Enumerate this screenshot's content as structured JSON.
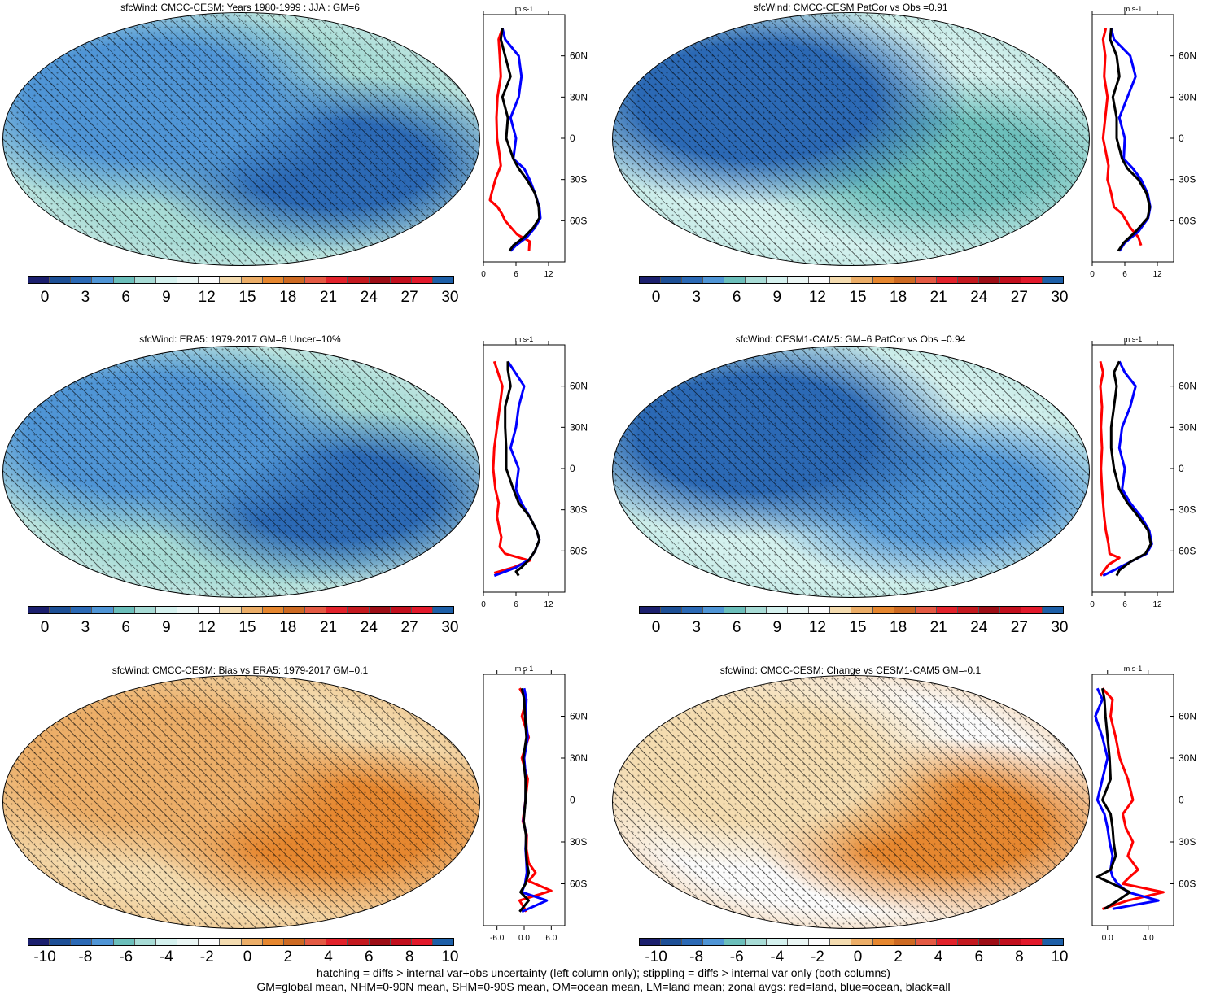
{
  "colors": {
    "abs_palette": [
      "#1b1f6e",
      "#1d4f96",
      "#2b69b5",
      "#4f95d6",
      "#6cbfbb",
      "#a8dcd6",
      "#d4f1ee",
      "#eaf6f4",
      "#fbfbfb",
      "#f4dcb0",
      "#ecae68",
      "#e6872f",
      "#cd6a22",
      "#e45a43",
      "#e2222b",
      "#c4191f",
      "#9d0d16",
      "#c20f1d",
      "#e2192b",
      "#1d5fa8"
    ],
    "diff_palette": [
      "#1b1f6e",
      "#1d4f96",
      "#2b69b5",
      "#4f95d6",
      "#6cbfbb",
      "#a8dcd6",
      "#d4f1ee",
      "#eaf6f4",
      "#fbfbfb",
      "#f4dcb0",
      "#ecae68",
      "#e6872f",
      "#cd6a22",
      "#e45a43",
      "#e2222b",
      "#c4191f",
      "#9d0d16",
      "#c20f1d",
      "#e2192b",
      "#1d5fa8"
    ],
    "land": "red",
    "ocean": "blue",
    "all": "black"
  },
  "chart_data": [
    {
      "type": "heatmap",
      "title": "sfcWind: CMCC-CESM: Years 1980-1999 : JJA : GM=6",
      "colorbar_ticks": [
        "0",
        "3",
        "6",
        "9",
        "12",
        "15",
        "18",
        "21",
        "24",
        "27",
        "30"
      ],
      "zonal": {
        "unit": "m s-1",
        "x_ticks": [
          "0",
          "6",
          "12"
        ],
        "xlim": [
          0,
          15
        ],
        "y_ticks": [
          "60N",
          "30N",
          "0",
          "30S",
          "60S"
        ],
        "series": [
          {
            "name": "red=land",
            "color": "#ff0000",
            "x": [
              3.5,
              2.8,
              3,
              3.2,
              2.6,
              2.4,
              2.5,
              2.9,
              3.2,
              2.2,
              1.5,
              1.2,
              2.6,
              3.4,
              4,
              6.2,
              8.5,
              8.4
            ],
            "lat": [
              80,
              72,
              60,
              45,
              30,
              15,
              0,
              -10,
              -20,
              -30,
              -40,
              -45,
              -50,
              -55,
              -60,
              -70,
              -75,
              -82
            ]
          },
          {
            "name": "blue=ocean",
            "color": "#0000ff",
            "x": [
              3.5,
              4,
              6.5,
              7,
              6.5,
              5,
              6,
              5.5,
              7.5,
              8.5,
              9.5,
              10.3,
              10.5,
              9.5,
              8,
              6,
              5
            ],
            "lat": [
              80,
              72,
              60,
              45,
              30,
              15,
              0,
              -15,
              -22,
              -30,
              -40,
              -50,
              -58,
              -65,
              -72,
              -78,
              -82
            ]
          },
          {
            "name": "black=all",
            "color": "#000000",
            "x": [
              3.5,
              3.2,
              4,
              5,
              3.5,
              4.5,
              4.2,
              5.5,
              6.5,
              8,
              9.5,
              10.2,
              10.3,
              9.2,
              7.5,
              5.5,
              4.8
            ],
            "lat": [
              80,
              72,
              60,
              45,
              30,
              15,
              0,
              -15,
              -22,
              -30,
              -40,
              -50,
              -58,
              -65,
              -72,
              -78,
              -82
            ]
          }
        ]
      }
    },
    {
      "type": "heatmap",
      "title": "sfcWind: CMCC-CESM PatCor vs Obs =0.91",
      "colorbar_ticks": [
        "0",
        "3",
        "6",
        "9",
        "12",
        "15",
        "18",
        "21",
        "24",
        "27",
        "30"
      ],
      "zonal": {
        "unit": "m s-1",
        "x_ticks": [
          "0",
          "6",
          "12"
        ],
        "xlim": [
          0,
          15
        ],
        "y_ticks": [
          "60N",
          "30N",
          "0",
          "30S",
          "60S"
        ],
        "series": [
          {
            "name": "red=land",
            "color": "#ff0000",
            "x": [
              2.5,
              2,
              2.4,
              2.2,
              2.8,
              2.4,
              2,
              2.5,
              3,
              2.8,
              3.5,
              4,
              5.5,
              7,
              8.5,
              9
            ],
            "lat": [
              80,
              72,
              60,
              45,
              30,
              15,
              0,
              -10,
              -20,
              -30,
              -40,
              -50,
              -55,
              -65,
              -72,
              -78
            ]
          },
          {
            "name": "blue=ocean",
            "color": "#0000ff",
            "x": [
              3.5,
              4,
              7,
              8,
              6.5,
              5,
              6,
              5.8,
              7.5,
              9,
              10.2,
              10.7,
              10.3,
              8.5,
              6,
              5
            ],
            "lat": [
              80,
              72,
              60,
              45,
              30,
              15,
              0,
              -15,
              -22,
              -30,
              -40,
              -50,
              -58,
              -68,
              -76,
              -82
            ]
          },
          {
            "name": "black=all",
            "color": "#000000",
            "x": [
              3.5,
              3.3,
              4.5,
              5,
              3.8,
              4.5,
              4.5,
              5.5,
              6.5,
              8.5,
              10,
              10.6,
              10.2,
              8,
              5.8,
              4.8
            ],
            "lat": [
              80,
              72,
              60,
              45,
              30,
              15,
              0,
              -15,
              -22,
              -30,
              -40,
              -50,
              -58,
              -68,
              -76,
              -82
            ]
          }
        ]
      }
    },
    {
      "type": "heatmap",
      "title": "sfcWind: ERA5: 1979-2017 GM=6 Uncer=10%",
      "colorbar_ticks": [
        "0",
        "3",
        "6",
        "9",
        "12",
        "15",
        "18",
        "21",
        "24",
        "27",
        "30"
      ],
      "zonal": {
        "unit": "m s-1",
        "x_ticks": [
          "0",
          "6",
          "12"
        ],
        "xlim": [
          0,
          15
        ],
        "y_ticks": [
          "60N",
          "30N",
          "0",
          "30S",
          "60S"
        ],
        "series": [
          {
            "name": "red=land",
            "color": "#ff0000",
            "x": [
              2,
              2.5,
              3.5,
              3,
              2.5,
              2,
              1.8,
              2.2,
              2.8,
              2.5,
              3,
              3.3,
              3,
              4,
              8.5,
              5.5,
              2
            ],
            "lat": [
              78,
              72,
              60,
              45,
              30,
              15,
              0,
              -15,
              -25,
              -35,
              -45,
              -50,
              -57,
              -62,
              -67,
              -72,
              -76
            ]
          },
          {
            "name": "blue=ocean",
            "color": "#0000ff",
            "x": [
              4.5,
              5.5,
              7.5,
              6.5,
              6,
              5,
              6.5,
              6,
              7,
              8.5,
              9.8,
              10.3,
              9.5,
              8.5,
              6,
              4,
              2
            ],
            "lat": [
              78,
              72,
              60,
              45,
              30,
              15,
              0,
              -15,
              -25,
              -35,
              -45,
              -52,
              -60,
              -66,
              -72,
              -75,
              -78
            ]
          },
          {
            "name": "black=all",
            "color": "#000000",
            "x": [
              4.5,
              4.5,
              5,
              4,
              4,
              4.2,
              4.2,
              5.5,
              6.5,
              8.5,
              9.8,
              10.3,
              9.5,
              8.5,
              7,
              6,
              6.5
            ],
            "lat": [
              78,
              72,
              60,
              45,
              30,
              15,
              0,
              -15,
              -25,
              -35,
              -45,
              -52,
              -60,
              -66,
              -72,
              -75,
              -78
            ]
          }
        ]
      }
    },
    {
      "type": "heatmap",
      "title": "sfcWind: CESM1-CAM5: GM=6 PatCor vs Obs =0.94",
      "colorbar_ticks": [
        "0",
        "3",
        "6",
        "9",
        "12",
        "15",
        "18",
        "21",
        "24",
        "27",
        "30"
      ],
      "zonal": {
        "unit": "m s-1",
        "x_ticks": [
          "0",
          "6",
          "12"
        ],
        "xlim": [
          0,
          15
        ],
        "y_ticks": [
          "60N",
          "30N",
          "0",
          "30S",
          "60S"
        ],
        "series": [
          {
            "name": "red=land",
            "color": "#ff0000",
            "x": [
              1.5,
              2,
              1.5,
              1.8,
              1.6,
              1.8,
              1.6,
              1.8,
              2,
              2.2,
              2.5,
              3,
              3.2,
              5,
              3,
              1.5
            ],
            "lat": [
              78,
              70,
              60,
              45,
              30,
              15,
              0,
              -15,
              -25,
              -35,
              -45,
              -55,
              -62,
              -65,
              -70,
              -78
            ]
          },
          {
            "name": "blue=ocean",
            "color": "#0000ff",
            "x": [
              5,
              6,
              8,
              7,
              5.5,
              5,
              6,
              5.5,
              7,
              9,
              10.5,
              11,
              10,
              7,
              4,
              2
            ],
            "lat": [
              78,
              70,
              60,
              45,
              30,
              15,
              0,
              -15,
              -25,
              -35,
              -45,
              -55,
              -62,
              -68,
              -74,
              -78
            ]
          },
          {
            "name": "black=all",
            "color": "#000000",
            "x": [
              5,
              4,
              4.5,
              4,
              3.5,
              3.5,
              4,
              5,
              6.5,
              8.5,
              10.3,
              10.8,
              9.8,
              7,
              5,
              4.5
            ],
            "lat": [
              78,
              70,
              60,
              45,
              30,
              15,
              0,
              -15,
              -25,
              -35,
              -45,
              -55,
              -62,
              -68,
              -74,
              -78
            ]
          }
        ]
      }
    },
    {
      "type": "heatmap",
      "title": "sfcWind: CMCC-CESM: Bias vs ERA5: 1979-2017 GM=0.1",
      "colorbar_ticks": [
        "-10",
        "-8",
        "-6",
        "-4",
        "-2",
        "0",
        "2",
        "4",
        "6",
        "8",
        "10"
      ],
      "zonal": {
        "unit": "m s-1",
        "x_ticks": [
          "-6.0",
          "0.0",
          "6.0"
        ],
        "xlim": [
          -9,
          9
        ],
        "y_ticks": [
          "60N",
          "30N",
          "0",
          "30S",
          "60S"
        ],
        "series": [
          {
            "name": "red=land",
            "color": "#ff0000",
            "x": [
              -1,
              0.5,
              -0.5,
              1,
              -0.5,
              0.8,
              0.3,
              -0.3,
              0.6,
              0.5,
              1,
              2.5,
              1,
              6,
              -1,
              0.5
            ],
            "lat": [
              80,
              72,
              60,
              45,
              30,
              15,
              0,
              -15,
              -25,
              -35,
              -45,
              -52,
              -58,
              -65,
              -72,
              -80
            ]
          },
          {
            "name": "blue=ocean",
            "color": "#0000ff",
            "x": [
              0,
              0.5,
              0.3,
              0.8,
              0,
              0.4,
              0.3,
              -0.2,
              0.5,
              0.3,
              0.5,
              0.6,
              0.2,
              -0.5,
              5,
              -0.5
            ],
            "lat": [
              80,
              72,
              60,
              45,
              30,
              15,
              0,
              -15,
              -25,
              -35,
              -45,
              -52,
              -60,
              -66,
              -72,
              -80
            ]
          },
          {
            "name": "black=all",
            "color": "#000000",
            "x": [
              -0.5,
              0,
              0.2,
              0.5,
              -0.2,
              0.3,
              0.3,
              -0.1,
              0.4,
              0.4,
              0.6,
              1,
              0.3,
              -0.8,
              1,
              -1
            ],
            "lat": [
              80,
              72,
              60,
              45,
              30,
              15,
              0,
              -15,
              -25,
              -35,
              -45,
              -52,
              -60,
              -66,
              -72,
              -80
            ]
          }
        ]
      }
    },
    {
      "type": "heatmap",
      "title": "sfcWind: CMCC-CESM: Change vs CESM1-CAM5 GM=-0.1",
      "colorbar_ticks": [
        "-10",
        "-8",
        "-6",
        "-4",
        "-2",
        "0",
        "2",
        "4",
        "6",
        "8",
        "10"
      ],
      "zonal": {
        "unit": "m s-1",
        "x_ticks": [
          "0.0",
          "4.0"
        ],
        "xlim": [
          -1.5,
          6.5
        ],
        "y_ticks": [
          "60N",
          "30N",
          "0",
          "30S",
          "60S"
        ],
        "series": [
          {
            "name": "red=land",
            "color": "#ff0000",
            "x": [
              -0.5,
              0.5,
              0.3,
              0.8,
              1.2,
              2,
              2.5,
              1.5,
              1.8,
              2.5,
              2,
              3,
              2.2,
              1.5,
              5.5,
              2,
              -0.5
            ],
            "lat": [
              80,
              72,
              60,
              45,
              30,
              15,
              0,
              -10,
              -20,
              -30,
              -40,
              -50,
              -55,
              -60,
              -66,
              -72,
              -78
            ]
          },
          {
            "name": "blue=ocean",
            "color": "#0000ff",
            "x": [
              -1,
              -0.5,
              -1.2,
              -0.5,
              0,
              -0.5,
              -1,
              -0.3,
              0,
              0.2,
              0.5,
              0.3,
              0.5,
              1,
              2,
              5,
              0.5
            ],
            "lat": [
              80,
              72,
              60,
              45,
              30,
              15,
              0,
              -10,
              -20,
              -30,
              -40,
              -50,
              -55,
              -60,
              -66,
              -72,
              -78
            ]
          },
          {
            "name": "black=all",
            "color": "#000000",
            "x": [
              -0.5,
              -0.3,
              -0.2,
              0,
              0.2,
              0.3,
              -0.5,
              0.3,
              0.5,
              0.6,
              0.8,
              0.3,
              -1,
              0.5,
              2.2,
              1,
              -0.3
            ],
            "lat": [
              80,
              72,
              60,
              45,
              30,
              15,
              0,
              -10,
              -20,
              -30,
              -40,
              -50,
              -55,
              -60,
              -66,
              -72,
              -78
            ]
          }
        ]
      }
    }
  ],
  "footer": {
    "line1": "hatching = diffs > internal var+obs uncertainty (left column only); stippling = diffs > internal var only (both columns)",
    "line2": "GM=global mean, NHM=0-90N mean, SHM=0-90S mean, OM=ocean mean, LM=land mean; zonal avgs: red=land, blue=ocean, black=all"
  }
}
